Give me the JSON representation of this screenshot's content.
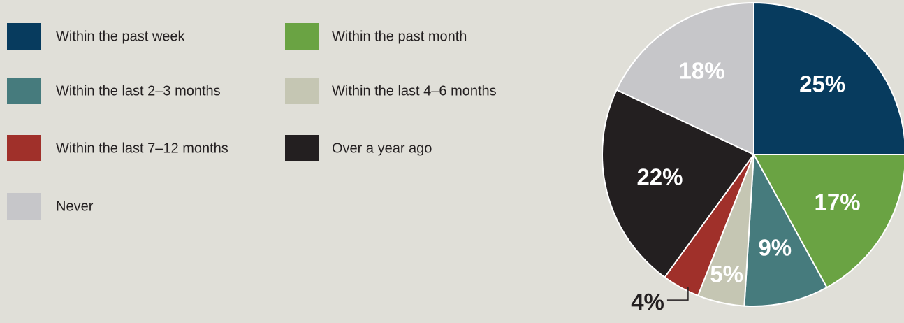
{
  "chart_data": {
    "type": "pie",
    "categories": [
      "Within the past week",
      "Within the past month",
      "Within the last 2–3 months",
      "Within the last 4–6 months",
      "Within the last 7–12 months",
      "Over a year ago",
      "Never"
    ],
    "values": [
      25,
      17,
      9,
      5,
      4,
      22,
      18
    ],
    "value_labels": [
      "25%",
      "17%",
      "9%",
      "5%",
      "4%",
      "22%",
      "18%"
    ],
    "colors": [
      "#073b5e",
      "#6aa343",
      "#467b7d",
      "#c5c6b3",
      "#a0302a",
      "#231f20",
      "#c6c6c9"
    ],
    "legend": "top-left"
  }
}
